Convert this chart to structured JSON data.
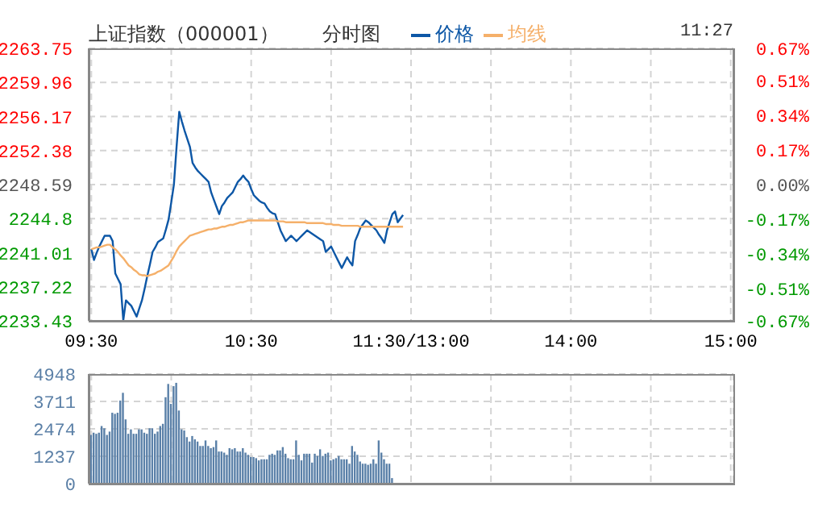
{
  "chart_data": [
    {
      "type": "line",
      "title": "上证指数（000001）",
      "subtitle": "分时图",
      "annotations": [
        "11:27"
      ],
      "legend": "top",
      "grid": true,
      "categories": [
        "09:30",
        null,
        null,
        null,
        null,
        null,
        null,
        null,
        null,
        null,
        null,
        null,
        null,
        null,
        null,
        null,
        null,
        null,
        null,
        null,
        null,
        null,
        null,
        null,
        null,
        null,
        null,
        null,
        null,
        null,
        null,
        null,
        null,
        null,
        null,
        null,
        null,
        null,
        null,
        null,
        null,
        null,
        null,
        null,
        null,
        null,
        null,
        null,
        null,
        null,
        null,
        null,
        null,
        null,
        null,
        null,
        null,
        null,
        null,
        null,
        "10:30",
        null,
        null,
        null,
        null,
        null,
        null,
        null,
        null,
        null,
        null,
        null,
        null,
        null,
        null,
        null,
        null,
        null,
        null,
        null,
        null,
        null,
        null,
        null,
        null,
        null,
        null,
        null,
        null,
        null,
        null,
        null,
        null,
        null,
        null,
        null,
        null,
        null,
        null,
        null,
        null,
        null,
        null,
        null,
        null,
        null,
        null,
        null,
        null,
        null,
        null,
        null,
        null,
        null,
        null,
        null,
        null,
        null,
        null,
        null,
        "11:30/13:00",
        null,
        null,
        null,
        null,
        null,
        null,
        null,
        null,
        null,
        null,
        null,
        null,
        null,
        null,
        null,
        null,
        null,
        null,
        null,
        null,
        null,
        null,
        null,
        null,
        null,
        null,
        null,
        null,
        null,
        null,
        null,
        null,
        null,
        null,
        null,
        null,
        null,
        null,
        null,
        null,
        null,
        null,
        null,
        null,
        null,
        null,
        null,
        null,
        null,
        null,
        null,
        null,
        null,
        null,
        null,
        null,
        null,
        null,
        null,
        "14:00",
        null,
        null,
        null,
        null,
        null,
        null,
        null,
        null,
        null,
        null,
        null,
        null,
        null,
        null,
        null,
        null,
        null,
        null,
        null,
        null,
        null,
        null,
        null,
        null,
        null,
        null,
        null,
        null,
        null,
        null,
        null,
        null,
        null,
        null,
        null,
        null,
        null,
        null,
        null,
        null,
        null,
        null,
        null,
        null,
        null,
        null,
        null,
        null,
        null,
        null,
        null,
        null,
        null,
        null,
        null,
        null,
        null,
        null,
        null,
        "15:00"
      ],
      "ylim": [
        2233.43,
        2263.75
      ],
      "yticks": [
        2233.43,
        2237.22,
        2241.01,
        2244.8,
        2248.59,
        2252.38,
        2256.17,
        2259.96,
        2263.75
      ],
      "y2lim": [
        -0.67,
        0.67
      ],
      "y2ticks": [
        {
          "value": -0.67,
          "label": "-0.67%"
        },
        {
          "value": -0.51,
          "label": "-0.51%"
        },
        {
          "value": -0.34,
          "label": "-0.34%"
        },
        {
          "value": -0.17,
          "label": "-0.17%"
        },
        {
          "value": 0,
          "label": "0.00%"
        },
        {
          "value": 0.17,
          "label": "0.17%"
        },
        {
          "value": 0.34,
          "label": "0.34%"
        },
        {
          "value": 0.51,
          "label": "0.51%"
        },
        {
          "value": 0.67,
          "label": "0.67%"
        }
      ],
      "series": [
        {
          "name": "价格",
          "color": "#0d57a6",
          "values": [
            2241.4,
            2240.2,
            2241.0,
            2241.7,
            2242.3,
            2242.9,
            2242.9,
            2242.9,
            2242.3,
            2238.7,
            2238.1,
            2237.5,
            2233.5,
            2235.7,
            2235.4,
            2235.1,
            2234.5,
            2233.9,
            2234.8,
            2235.7,
            2237.0,
            2238.4,
            2239.7,
            2241.1,
            2241.6,
            2242.2,
            2242.4,
            2242.6,
            2243.6,
            2244.7,
            2246.6,
            2248.6,
            2252.8,
            2256.7,
            2255.6,
            2254.6,
            2253.7,
            2252.8,
            2251.0,
            2250.5,
            2250.1,
            2249.8,
            2249.5,
            2249.2,
            2248.9,
            2247.7,
            2246.9,
            2246.1,
            2245.3,
            2246.2,
            2246.6,
            2247.1,
            2247.4,
            2247.7,
            2248.3,
            2248.9,
            2249.2,
            2249.6,
            2249.2,
            2248.9,
            2248.1,
            2247.4,
            2247.1,
            2246.8,
            2246.6,
            2246.5,
            2246.0,
            2245.6,
            2245.4,
            2245.3,
            2244.4,
            2243.5,
            2242.9,
            2242.3,
            2242.6,
            2242.9,
            2242.6,
            2242.3,
            2242.6,
            2242.9,
            2243.2,
            2243.5,
            2243.3,
            2243.1,
            2242.9,
            2242.7,
            2242.5,
            2242.3,
            2241.1,
            2241.4,
            2241.7,
            2241.1,
            2240.5,
            2239.9,
            2239.3,
            2239.9,
            2240.5,
            2240.0,
            2239.6,
            2242.3,
            2243.0,
            2243.8,
            2244.2,
            2244.6,
            2244.4,
            2244.1,
            2243.8,
            2243.5,
            2243.0,
            2242.6,
            2242.1,
            2243.5,
            2244.4,
            2245.3,
            2245.6,
            2244.4,
            2244.8,
            2245.2,
            null,
            null,
            null,
            null,
            null,
            null,
            null,
            null,
            null,
            null,
            null,
            null,
            null,
            null,
            null,
            null,
            null,
            null,
            null,
            null,
            null,
            null,
            null,
            null,
            null,
            null,
            null,
            null,
            null,
            null,
            null,
            null,
            null,
            null,
            null,
            null,
            null,
            null,
            null,
            null,
            null,
            null,
            null,
            null,
            null,
            null,
            null,
            null,
            null,
            null,
            null,
            null,
            null,
            null,
            null,
            null,
            null,
            null,
            null,
            null,
            null,
            null,
            null,
            null,
            null,
            null,
            null,
            null,
            null,
            null,
            null,
            null,
            null,
            null,
            null,
            null,
            null,
            null,
            null,
            null,
            null,
            null,
            null,
            null,
            null,
            null,
            null,
            null,
            null,
            null,
            null,
            null,
            null,
            null,
            null,
            null,
            null,
            null,
            null,
            null,
            null,
            null,
            null,
            null,
            null,
            null,
            null,
            null,
            null,
            null,
            null,
            null,
            null,
            null,
            null,
            null,
            null,
            null,
            null,
            null,
            null,
            null,
            null
          ]
        },
        {
          "name": "均线",
          "color": "#f5b06a",
          "values": [
            2241.4,
            2241.5,
            2241.6,
            2241.6,
            2241.7,
            2241.8,
            2241.9,
            2241.9,
            2241.6,
            2241.4,
            2241.1,
            2240.7,
            2240.4,
            2240.0,
            2239.6,
            2239.4,
            2239.1,
            2238.9,
            2238.6,
            2238.5,
            2238.5,
            2238.4,
            2238.5,
            2238.6,
            2238.7,
            2238.9,
            2239.0,
            2239.2,
            2239.4,
            2239.6,
            2240.1,
            2240.6,
            2241.2,
            2241.7,
            2242.0,
            2242.3,
            2242.6,
            2242.9,
            2243.0,
            2243.1,
            2243.2,
            2243.3,
            2243.4,
            2243.5,
            2243.6,
            2243.6,
            2243.7,
            2243.7,
            2243.8,
            2243.9,
            2243.9,
            2244.0,
            2244.1,
            2244.1,
            2244.2,
            2244.3,
            2244.4,
            2244.4,
            2244.5,
            2244.6,
            2244.6,
            2244.6,
            2244.6,
            2244.6,
            2244.6,
            2244.6,
            2244.6,
            2244.6,
            2244.6,
            2244.6,
            2244.5,
            2244.5,
            2244.5,
            2244.4,
            2244.4,
            2244.4,
            2244.4,
            2244.4,
            2244.4,
            2244.4,
            2244.4,
            2244.3,
            2244.3,
            2244.3,
            2244.3,
            2244.3,
            2244.3,
            2244.3,
            2244.2,
            2244.2,
            2244.2,
            2244.1,
            2244.1,
            2244.1,
            2244.0,
            2244.0,
            2244.0,
            2244.0,
            2244.0,
            2244.0,
            2244.0,
            2243.9,
            2243.9,
            2243.9,
            2243.9,
            2243.9,
            2243.9,
            2243.9,
            2243.9,
            2243.9,
            2243.9,
            2243.9,
            2243.9,
            2243.9,
            2243.9,
            2243.9,
            2243.9,
            2243.9,
            null,
            null,
            null,
            null,
            null,
            null,
            null,
            null,
            null,
            null,
            null,
            null,
            null,
            null,
            null,
            null,
            null,
            null,
            null,
            null,
            null,
            null,
            null,
            null,
            null,
            null,
            null,
            null,
            null,
            null,
            null,
            null,
            null,
            null,
            null,
            null,
            null,
            null,
            null,
            null,
            null,
            null,
            null,
            null,
            null,
            null,
            null,
            null,
            null,
            null,
            null,
            null,
            null,
            null,
            null,
            null,
            null,
            null,
            null,
            null,
            null,
            null,
            null,
            null,
            null,
            null,
            null,
            null,
            null,
            null,
            null,
            null,
            null,
            null,
            null,
            null,
            null,
            null,
            null,
            null,
            null,
            null,
            null,
            null,
            null,
            null,
            null,
            null,
            null,
            null,
            null,
            null,
            null,
            null,
            null,
            null,
            null,
            null,
            null,
            null,
            null,
            null,
            null,
            null,
            null,
            null,
            null,
            null,
            null,
            null,
            null,
            null,
            null,
            null,
            null,
            null,
            null,
            null,
            null,
            null,
            null,
            null,
            null
          ]
        }
      ]
    },
    {
      "type": "bar",
      "grid": true,
      "color": "#5a80a8",
      "categories": [
        null,
        null,
        null,
        null,
        null,
        null,
        null,
        null,
        null,
        null,
        null,
        null,
        null,
        null,
        null,
        null,
        null,
        null,
        null,
        null,
        null,
        null,
        null,
        null,
        null,
        null,
        null,
        null,
        null,
        null,
        null,
        null,
        null,
        null,
        null,
        null,
        null,
        null,
        null,
        null,
        null,
        null,
        null,
        null,
        null,
        null,
        null,
        null,
        null,
        null,
        null,
        null,
        null,
        null,
        null,
        null,
        null,
        null,
        null,
        null,
        null,
        null,
        null,
        null,
        null,
        null,
        null,
        null,
        null,
        null,
        null,
        null,
        null,
        null,
        null,
        null,
        null,
        null,
        null,
        null,
        null,
        null,
        null,
        null,
        null,
        null,
        null,
        null,
        null,
        null,
        null,
        null,
        null,
        null,
        null,
        null,
        null,
        null,
        null,
        null,
        null,
        null,
        null,
        null,
        null,
        null,
        null,
        null,
        null,
        null,
        null,
        null,
        null,
        null,
        null,
        null,
        null,
        null,
        null,
        null,
        null,
        null,
        null,
        null,
        null,
        null,
        null,
        null,
        null,
        null,
        null,
        null,
        null,
        null,
        null,
        null,
        null,
        null,
        null,
        null,
        null,
        null,
        null,
        null,
        null,
        null,
        null,
        null,
        null,
        null,
        null,
        null,
        null,
        null,
        null,
        null,
        null,
        null,
        null,
        null,
        null,
        null,
        null,
        null,
        null,
        null,
        null,
        null,
        null,
        null,
        null,
        null,
        null,
        null,
        null,
        null,
        null,
        null,
        null,
        null,
        null,
        null,
        null,
        null,
        null,
        null,
        null,
        null,
        null,
        null,
        null,
        null,
        null,
        null,
        null,
        null,
        null,
        null,
        null,
        null,
        null,
        null,
        null,
        null,
        null,
        null,
        null,
        null,
        null,
        null,
        null,
        null,
        null,
        null,
        null,
        null,
        null,
        null,
        null,
        null,
        null,
        null,
        null,
        null,
        null,
        null,
        null,
        null,
        null,
        null,
        null,
        null,
        null,
        null,
        null,
        null,
        null,
        null,
        null,
        null,
        null
      ],
      "ylim": [
        0,
        4948
      ],
      "yticks": [
        0,
        1237,
        2474,
        3711,
        4948
      ],
      "values": [
        2200,
        2300,
        2250,
        2300,
        2600,
        2500,
        2200,
        2350,
        3200,
        3150,
        3200,
        3750,
        4100,
        2900,
        2250,
        2450,
        2250,
        2250,
        2450,
        2450,
        2300,
        2250,
        2500,
        2500,
        2250,
        2350,
        2600,
        2700,
        3900,
        4500,
        3600,
        4400,
        4550,
        3300,
        2450,
        2400,
        2100,
        1900,
        2150,
        2000,
        1900,
        1700,
        1700,
        1950,
        1700,
        1600,
        1650,
        1950,
        1450,
        1450,
        1400,
        1300,
        1600,
        1550,
        1600,
        1450,
        1450,
        1600,
        1400,
        1300,
        1200,
        1200,
        1150,
        1050,
        1100,
        1100,
        1100,
        1300,
        1350,
        1300,
        1500,
        1500,
        1650,
        1350,
        1150,
        1100,
        1100,
        1950,
        1300,
        1050,
        1350,
        1350,
        1350,
        950,
        1350,
        1250,
        1550,
        1250,
        1350,
        1400,
        1050,
        1100,
        1150,
        1250,
        1100,
        1100,
        1100,
        900,
        1700,
        1450,
        1300,
        1000,
        900,
        900,
        850,
        900,
        1100,
        900,
        1950,
        1400,
        1100,
        900,
        900,
        250,
        null,
        null,
        null,
        null,
        null,
        null,
        null,
        null,
        null,
        null,
        null,
        null,
        null,
        null,
        null,
        null,
        null,
        null,
        null,
        null,
        null,
        null,
        null,
        null,
        null,
        null,
        null,
        null,
        null,
        null,
        null,
        null,
        null,
        null,
        null,
        null,
        null,
        null,
        null,
        null,
        null,
        null,
        null,
        null,
        null,
        null,
        null,
        null,
        null,
        null,
        null,
        null,
        null,
        null,
        null,
        null,
        null,
        null,
        null,
        null,
        null,
        null,
        null,
        null,
        null,
        null,
        null,
        null,
        null,
        null,
        null,
        null,
        null,
        null,
        null,
        null,
        null,
        null,
        null,
        null,
        null,
        null,
        null,
        null,
        null,
        null,
        null,
        null,
        null,
        null,
        null,
        null,
        null,
        null,
        null,
        null,
        null,
        null,
        null,
        null,
        null,
        null,
        null,
        null,
        null,
        null,
        null,
        null,
        null,
        null,
        null,
        null,
        null,
        null,
        null,
        null,
        null,
        null,
        null,
        null,
        null,
        null,
        null,
        null,
        null,
        null,
        null
      ]
    }
  ]
}
